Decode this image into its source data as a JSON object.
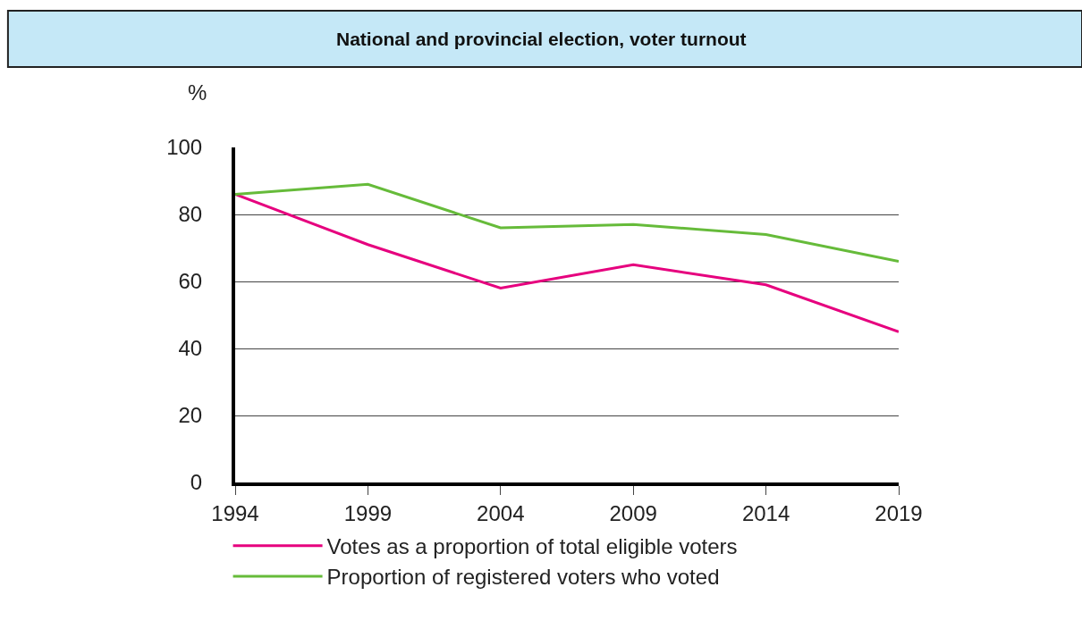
{
  "chart_data": {
    "type": "line",
    "title": "National and provincial election, voter turnout",
    "ylabel": "%",
    "x": [
      1994,
      1999,
      2004,
      2009,
      2014,
      2019
    ],
    "series": [
      {
        "name": "Votes as a proportion of total eligible voters",
        "color": "#e6007e",
        "values": [
          86,
          71,
          58,
          65,
          59,
          45
        ]
      },
      {
        "name": "Proportion of registered voters who voted",
        "color": "#66bb3a",
        "values": [
          86,
          89,
          76,
          77,
          74,
          66
        ]
      }
    ],
    "xlim": [
      1994,
      2019
    ],
    "xticks": [
      1994,
      1999,
      2004,
      2009,
      2014,
      2019
    ],
    "ylim": [
      0,
      100
    ],
    "yticks": [
      0,
      20,
      40,
      60,
      80,
      100
    ],
    "grid": "y",
    "legend": "bottom",
    "marker": "none",
    "line_style": "solid"
  }
}
